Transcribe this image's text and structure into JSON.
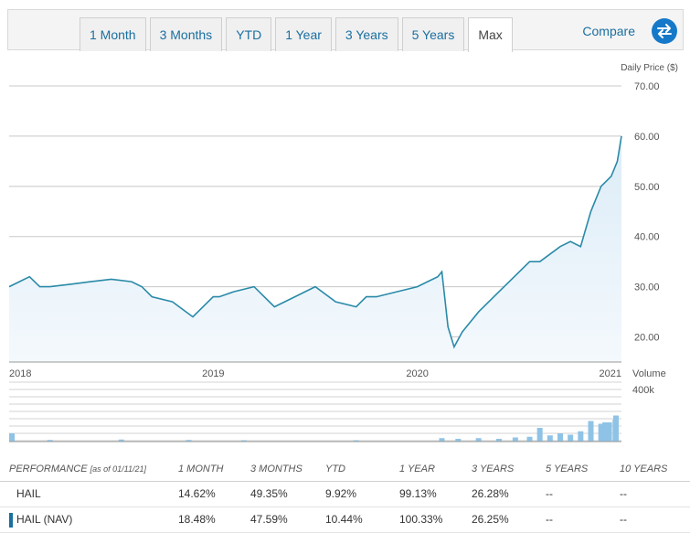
{
  "tabs": [
    {
      "label": "1 Month"
    },
    {
      "label": "3 Months"
    },
    {
      "label": "YTD"
    },
    {
      "label": "1 Year"
    },
    {
      "label": "3 Years"
    },
    {
      "label": "5 Years"
    },
    {
      "label": "Max",
      "active": true
    }
  ],
  "compare_label": "Compare",
  "colors": {
    "line": "#2a8aa8",
    "area": "#dcecf7",
    "volume": "#8fc3e6",
    "grid": "#c8c8c8",
    "link": "#1a6fa0"
  },
  "chart_data": [
    {
      "type": "area",
      "ylabel": "Daily Price ($)",
      "ylim": [
        15,
        70
      ],
      "yticks": [
        "20.00",
        "30.00",
        "40.00",
        "50.00",
        "60.00",
        "70.00"
      ],
      "xticks": [
        "2018",
        "2019",
        "2020",
        "2021"
      ],
      "grid": true,
      "x": [
        2018.0,
        2018.05,
        2018.1,
        2018.15,
        2018.2,
        2018.3,
        2018.4,
        2018.5,
        2018.6,
        2018.65,
        2018.7,
        2018.8,
        2018.9,
        2019.0,
        2019.03,
        2019.1,
        2019.2,
        2019.3,
        2019.4,
        2019.45,
        2019.5,
        2019.6,
        2019.7,
        2019.75,
        2019.8,
        2019.9,
        2020.0,
        2020.05,
        2020.1,
        2020.12,
        2020.15,
        2020.18,
        2020.22,
        2020.3,
        2020.4,
        2020.5,
        2020.55,
        2020.6,
        2020.7,
        2020.75,
        2020.8,
        2020.85,
        2020.9,
        2020.95,
        2020.98,
        2021.0
      ],
      "y": [
        30,
        31,
        32,
        30,
        30,
        30.5,
        31,
        31.5,
        31,
        30,
        28,
        27,
        24,
        28,
        28,
        29,
        30,
        26,
        28,
        29,
        30,
        27,
        26,
        28,
        28,
        29,
        30,
        31,
        32,
        33,
        22,
        18,
        21,
        25,
        29,
        33,
        35,
        35,
        38,
        39,
        38,
        45,
        50,
        52,
        55,
        60
      ],
      "series": [
        {
          "values": [
            30,
            31,
            32,
            30,
            30,
            30.5,
            31,
            31.5,
            31,
            30,
            28,
            27,
            24,
            28,
            28,
            29,
            30,
            26,
            28,
            29,
            30,
            27,
            26,
            28,
            28,
            29,
            30,
            31,
            32,
            33,
            22,
            18,
            21,
            25,
            29,
            33,
            35,
            35,
            38,
            39,
            38,
            45,
            50,
            52,
            55,
            60
          ]
        }
      ]
    },
    {
      "type": "bar",
      "ylabel": "Volume",
      "ylim": [
        0,
        500000
      ],
      "yticks": [
        "400k"
      ],
      "x": [
        2018.0,
        2018.2,
        2018.55,
        2018.88,
        2019.15,
        2019.7,
        2020.12,
        2020.2,
        2020.3,
        2020.4,
        2020.48,
        2020.55,
        2020.6,
        2020.65,
        2020.7,
        2020.75,
        2020.8,
        2020.85,
        2020.9,
        2020.92,
        2020.94,
        2020.97,
        2021.0
      ],
      "values": [
        60000,
        12000,
        15000,
        12000,
        10000,
        10000,
        25000,
        20000,
        25000,
        20000,
        30000,
        35000,
        100000,
        45000,
        60000,
        50000,
        75000,
        150000,
        130000,
        140000,
        140000,
        160000,
        190000
      ]
    }
  ],
  "performance": {
    "headers": [
      "PERFORMANCE",
      "[as of 01/11/21]",
      "1 MONTH",
      "3 MONTHS",
      "YTD",
      "1 YEAR",
      "3 YEARS",
      "5 YEARS",
      "10 YEARS"
    ],
    "rows": [
      {
        "name": "HAIL",
        "values": [
          "14.62%",
          "49.35%",
          "9.92%",
          "99.13%",
          "26.28%",
          "--",
          "--"
        ]
      },
      {
        "name": "HAIL (NAV)",
        "values": [
          "18.48%",
          "47.59%",
          "10.44%",
          "100.33%",
          "26.25%",
          "--",
          "--"
        ]
      }
    ]
  }
}
